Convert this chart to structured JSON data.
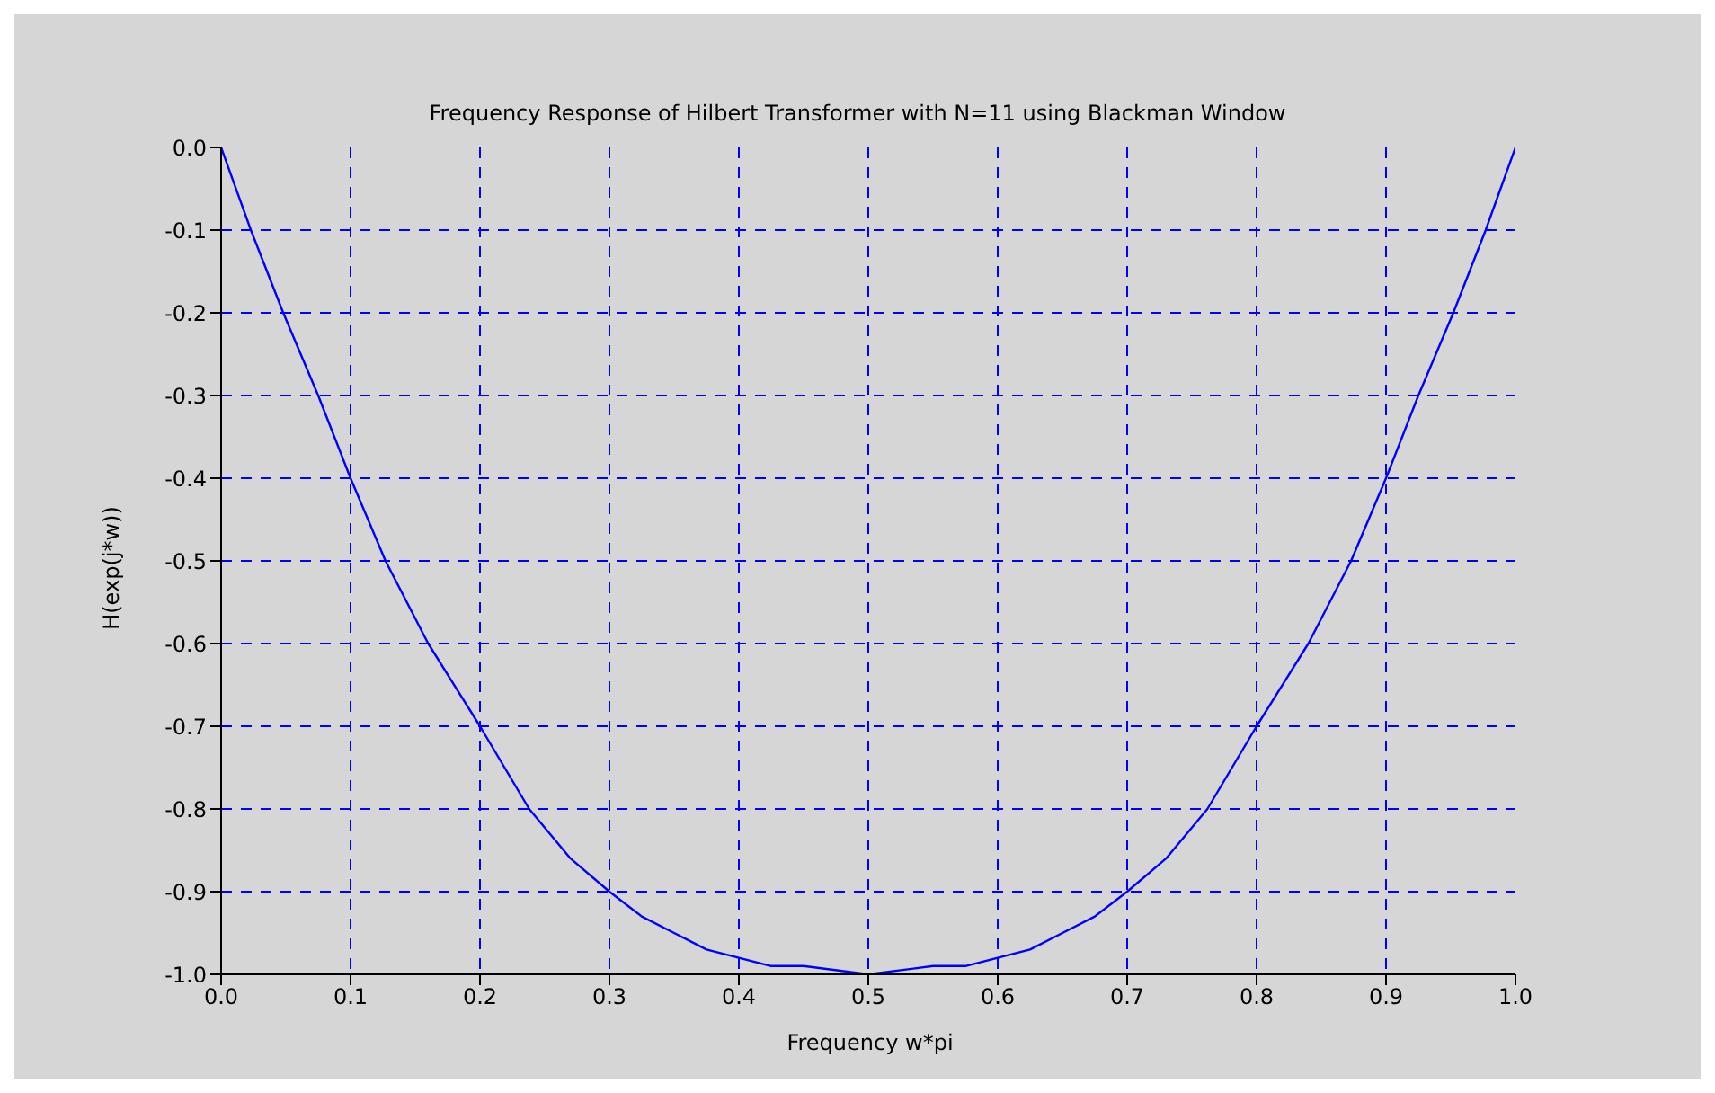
{
  "chart_data": {
    "type": "line",
    "title": "Frequency Response of Hilbert Transformer with N=11 using Blackman Window",
    "xlabel": "Frequency w*pi",
    "ylabel": "H(exp(j*w))",
    "x": [
      0,
      0.023,
      0.048,
      0.075,
      0.1,
      0.127,
      0.16,
      0.2,
      0.238,
      0.27,
      0.3,
      0.325,
      0.35,
      0.375,
      0.4,
      0.425,
      0.45,
      0.5,
      0.55,
      0.575,
      0.6,
      0.625,
      0.65,
      0.675,
      0.7,
      0.73,
      0.762,
      0.8,
      0.84,
      0.873,
      0.9,
      0.925,
      0.952,
      0.977,
      1
    ],
    "series": [
      {
        "color": "#0000ff",
        "values": [
          0,
          -0.1,
          -0.2,
          -0.3,
          -0.4,
          -0.5,
          -0.6,
          -0.7,
          -0.8,
          -0.86,
          -0.9,
          -0.93,
          -0.95,
          -0.97,
          -0.98,
          -0.99,
          -0.99,
          -1.0,
          -0.99,
          -0.99,
          -0.98,
          -0.97,
          -0.95,
          -0.93,
          -0.9,
          -0.86,
          -0.8,
          -0.7,
          -0.6,
          -0.5,
          -0.4,
          -0.3,
          -0.2,
          -0.1,
          0
        ]
      }
    ],
    "xlim": [
      0,
      1
    ],
    "ylim": [
      -1,
      0
    ],
    "xticks": [
      {
        "value": 0,
        "label": "0.0"
      },
      {
        "value": 0.1,
        "label": "0.1"
      },
      {
        "value": 0.2,
        "label": "0.2"
      },
      {
        "value": 0.3,
        "label": "0.3"
      },
      {
        "value": 0.4,
        "label": "0.4"
      },
      {
        "value": 0.5,
        "label": "0.5"
      },
      {
        "value": 0.6,
        "label": "0.6"
      },
      {
        "value": 0.7,
        "label": "0.7"
      },
      {
        "value": 0.8,
        "label": "0.8"
      },
      {
        "value": 0.9,
        "label": "0.9"
      },
      {
        "value": 1,
        "label": "1.0"
      }
    ],
    "yticks": [
      {
        "value": -1,
        "label": "-1.0"
      },
      {
        "value": -0.9,
        "label": "-0.9"
      },
      {
        "value": -0.8,
        "label": "-0.8"
      },
      {
        "value": -0.7,
        "label": "-0.7"
      },
      {
        "value": -0.6,
        "label": "-0.6"
      },
      {
        "value": -0.5,
        "label": "-0.5"
      },
      {
        "value": -0.4,
        "label": "-0.4"
      },
      {
        "value": -0.3,
        "label": "-0.3"
      },
      {
        "value": -0.2,
        "label": "-0.2"
      },
      {
        "value": -0.1,
        "label": "-0.1"
      },
      {
        "value": 0,
        "label": "0.0"
      }
    ],
    "grid": true,
    "marker": "none",
    "line_style": "solid"
  }
}
